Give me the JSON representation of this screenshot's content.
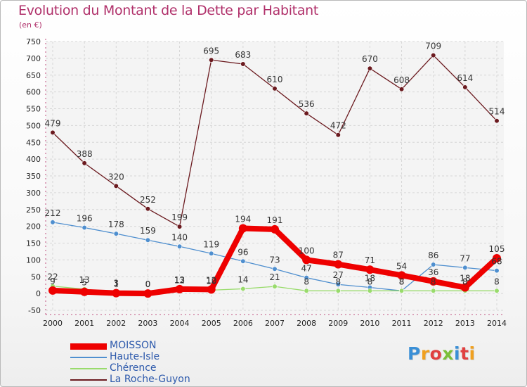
{
  "title": "Evolution du Montant de la Dette par Habitant",
  "unit": "(en €)",
  "logo": {
    "letters": [
      "P",
      "r",
      "o",
      "x",
      "i",
      "t",
      "i"
    ],
    "colors": [
      "#3a8fd6",
      "#f0a020",
      "#e04040",
      "#7bbf3a",
      "#3a8fd6",
      "#e04040",
      "#f0a020"
    ]
  },
  "chart_data": {
    "type": "line",
    "x": [
      "2000",
      "2001",
      "2002",
      "2003",
      "2004",
      "2005",
      "2006",
      "2007",
      "2008",
      "2009",
      "2010",
      "2011",
      "2012",
      "2013",
      "2014"
    ],
    "ylim": [
      -50,
      750
    ],
    "yticks": [
      -50,
      0,
      50,
      100,
      150,
      200,
      250,
      300,
      350,
      400,
      450,
      500,
      550,
      600,
      650,
      700,
      750
    ],
    "grid": true,
    "legend_position": "bottom-left",
    "series": [
      {
        "name": "La Roche-Guyon",
        "color": "#6b1a1f",
        "values": [
          479,
          388,
          320,
          252,
          199,
          695,
          683,
          610,
          536,
          472,
          670,
          608,
          709,
          614,
          514
        ]
      },
      {
        "name": "Haute-Isle",
        "color": "#4f8fcf",
        "values": [
          212,
          196,
          178,
          159,
          140,
          119,
          96,
          73,
          47,
          27,
          18,
          8,
          86,
          77,
          68
        ]
      },
      {
        "name": "Chérence",
        "color": "#99db6c",
        "values": [
          22,
          13,
          3,
          0,
          12,
          10,
          14,
          21,
          8,
          8,
          8,
          8,
          8,
          8,
          8
        ]
      },
      {
        "name": "MOISSON",
        "color": "#ee0000",
        "values": [
          9,
          5,
          1,
          0,
          13,
          12,
          194,
          191,
          100,
          87,
          71,
          54,
          36,
          18,
          105
        ]
      }
    ],
    "point_labels": [
      {
        "series": "La Roche-Guyon",
        "values": [
          "479",
          "388",
          "320",
          "252",
          "199",
          "695",
          "683",
          "610",
          "536",
          "472",
          "670",
          "608",
          "709",
          "614",
          "514"
        ]
      },
      {
        "series": "Haute-Isle",
        "values": [
          "212",
          "196",
          "178",
          "159",
          "140",
          "119",
          "96",
          "73",
          "47",
          "27",
          "18",
          "8",
          "86",
          "77",
          "68"
        ]
      },
      {
        "series": "Chérence",
        "values": [
          "22",
          "13",
          "3",
          "0",
          "12",
          "10",
          "14",
          "21",
          "8",
          "8",
          "8",
          "8",
          "8",
          "8",
          "8"
        ]
      },
      {
        "series": "MOISSON",
        "values": [
          "9",
          "5",
          "1",
          "0",
          "13",
          "12",
          "194",
          "191",
          "100",
          "87",
          "71",
          "54",
          "36",
          "18",
          "105"
        ]
      }
    ]
  }
}
